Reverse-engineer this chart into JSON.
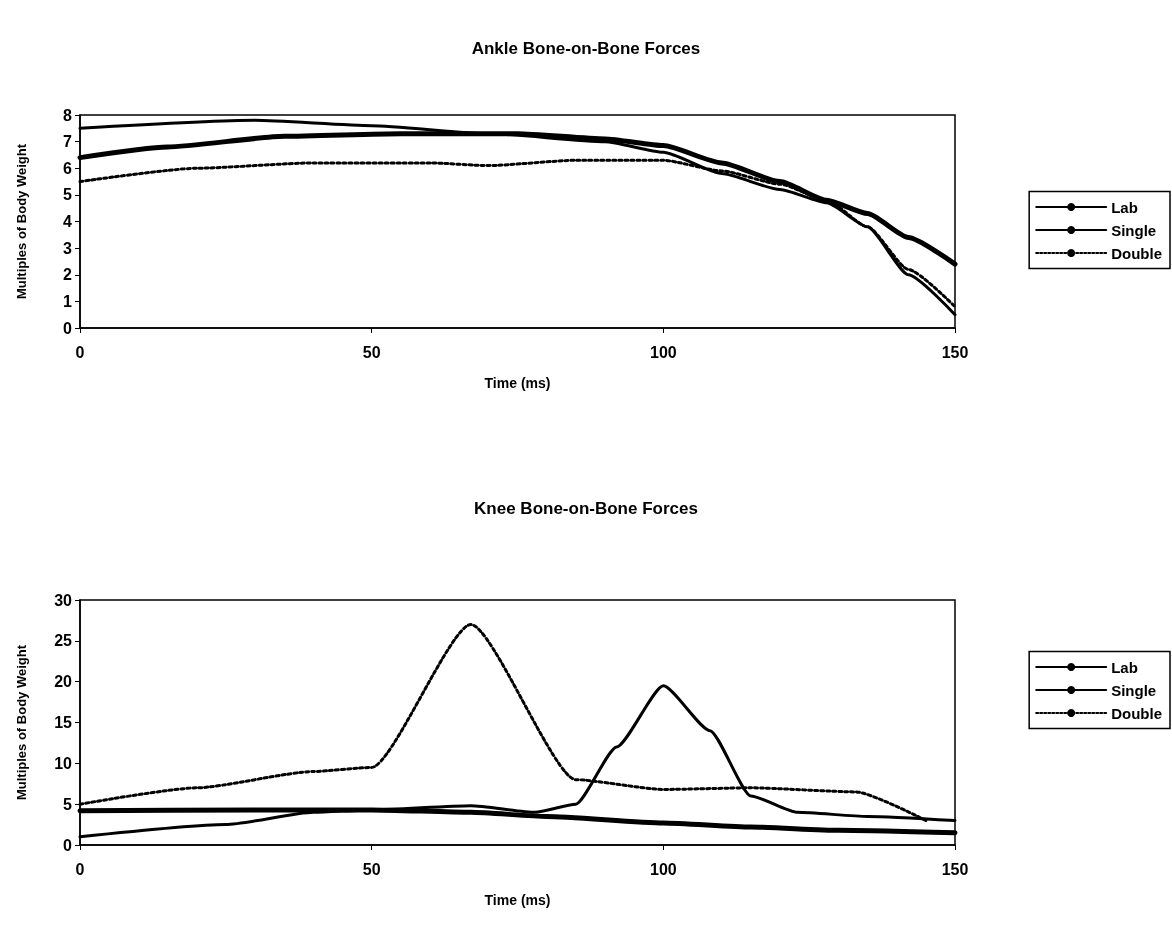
{
  "chart_data": [
    {
      "type": "line",
      "title": "Ankle Bone-on-Bone Forces",
      "xlabel": "Time (ms)",
      "ylabel": "Multiples of Body Weight",
      "xlim": [
        0,
        150
      ],
      "xticks": [
        0,
        50,
        100,
        150
      ],
      "ylim": [
        0,
        8
      ],
      "yticks": [
        0,
        1,
        2,
        3,
        4,
        5,
        6,
        7,
        8
      ],
      "grid": false,
      "legend": "right",
      "marker": "none",
      "series": [
        {
          "name": "Lab",
          "color": "#000000",
          "line_style": "solid",
          "x": [
            0,
            15,
            35,
            55,
            75,
            90,
            100,
            110,
            120,
            128,
            135,
            142,
            150
          ],
          "values": [
            6.4,
            6.8,
            7.2,
            7.3,
            7.3,
            7.1,
            6.85,
            6.2,
            5.5,
            4.8,
            4.3,
            3.4,
            2.4
          ]
        },
        {
          "name": "Single",
          "color": "#000000",
          "line_style": "solid",
          "x": [
            0,
            30,
            50,
            70,
            90,
            100,
            110,
            120,
            128,
            135,
            142,
            150
          ],
          "values": [
            7.5,
            7.8,
            7.6,
            7.3,
            7.0,
            6.6,
            5.8,
            5.2,
            4.7,
            3.8,
            2.0,
            0.5
          ]
        },
        {
          "name": "Double",
          "color": "#000000",
          "line_style": "dotted",
          "x": [
            0,
            20,
            40,
            60,
            70,
            85,
            100,
            110,
            120,
            128,
            135,
            142,
            150
          ],
          "values": [
            5.5,
            6.0,
            6.2,
            6.2,
            6.1,
            6.3,
            6.3,
            5.9,
            5.4,
            4.8,
            3.8,
            2.2,
            0.8
          ]
        }
      ]
    },
    {
      "type": "line",
      "title": "Knee Bone-on-Bone Forces",
      "xlabel": "Time (ms)",
      "ylabel": "Multiples of Body Weight",
      "xlim": [
        0,
        150
      ],
      "xticks": [
        0,
        50,
        100,
        150
      ],
      "ylim": [
        0,
        30
      ],
      "yticks": [
        0,
        5,
        10,
        15,
        20,
        25,
        30
      ],
      "grid": false,
      "legend": "right",
      "marker": "none",
      "series": [
        {
          "name": "Lab",
          "color": "#000000",
          "line_style": "solid",
          "x": [
            0,
            30,
            50,
            67,
            80,
            100,
            115,
            130,
            150
          ],
          "values": [
            4.2,
            4.3,
            4.3,
            4.0,
            3.5,
            2.7,
            2.2,
            1.8,
            1.5
          ]
        },
        {
          "name": "Single",
          "color": "#000000",
          "line_style": "solid",
          "x": [
            0,
            25,
            40,
            50,
            67,
            78,
            85,
            92,
            100,
            108,
            115,
            123,
            135,
            150
          ],
          "values": [
            1.0,
            2.5,
            4.0,
            4.3,
            4.8,
            4.0,
            5.0,
            12.0,
            19.5,
            14.0,
            6.0,
            4.0,
            3.5,
            3.0
          ]
        },
        {
          "name": "Double",
          "color": "#000000",
          "line_style": "dotted",
          "x": [
            0,
            20,
            40,
            50,
            67,
            85,
            100,
            115,
            133,
            145
          ],
          "values": [
            5.0,
            7.0,
            9.0,
            9.5,
            27.0,
            8.0,
            6.8,
            7.0,
            6.5,
            3.0
          ]
        }
      ]
    }
  ]
}
